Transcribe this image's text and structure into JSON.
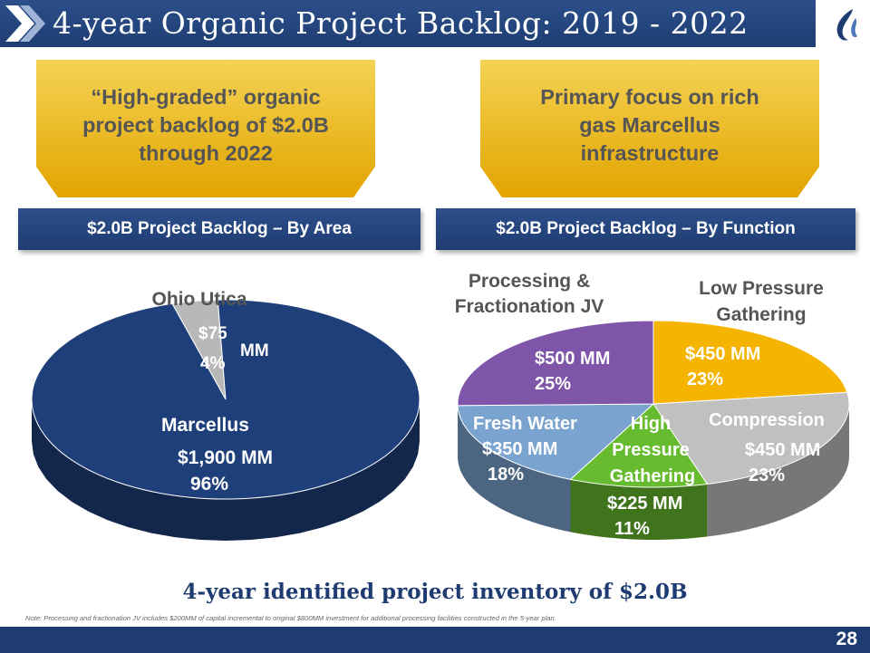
{
  "header": {
    "title": "4-year Organic Project Backlog: 2019 - 2022"
  },
  "callouts": [
    {
      "lines": [
        "“High-graded” organic",
        "project backlog of $2.0B",
        "through 2022"
      ]
    },
    {
      "lines": [
        "Primary focus on rich",
        "gas Marcellus",
        "infrastructure"
      ]
    }
  ],
  "bands": {
    "area": "$2.0B Project Backlog – By Area",
    "function": "$2.0B Project Backlog – By Function"
  },
  "chart_data": [
    {
      "type": "pie",
      "title": "$2.0B Project Backlog – By Area",
      "unit": "MM",
      "slices": [
        {
          "name": "Ohio Utica",
          "value": 75,
          "percent": 4,
          "value_label": "$75",
          "unit_label": "MM",
          "percent_label": "4%",
          "color": "#b8b8b8"
        },
        {
          "name": "Marcellus",
          "value": 1900,
          "percent": 96,
          "value_label": "$1,900  MM",
          "percent_label": "96%",
          "color": "#1f3f7a"
        }
      ]
    },
    {
      "type": "pie",
      "title": "$2.0B Project Backlog – By Function",
      "unit": "MM",
      "slices": [
        {
          "name": "Low Pressure Gathering",
          "name_lines": [
            "Low Pressure",
            "Gathering"
          ],
          "value": 450,
          "percent": 23,
          "value_label": "$450  MM",
          "percent_label": "23%",
          "color": "#f4b400"
        },
        {
          "name": "Compression",
          "name_lines": [
            "Compression"
          ],
          "value": 450,
          "percent": 23,
          "value_label": "$450 MM",
          "percent_label": "23%",
          "color": "#c0c0c0"
        },
        {
          "name": "High Pressure Gathering",
          "name_lines": [
            "High",
            "Pressure",
            "Gathering"
          ],
          "value": 225,
          "percent": 11,
          "value_label": "$225 MM",
          "percent_label": "11%",
          "color": "#66bb2e"
        },
        {
          "name": "Fresh Water",
          "name_lines": [
            "Fresh Water"
          ],
          "value": 350,
          "percent": 18,
          "value_label": "$350 MM",
          "percent_label": "18%",
          "color": "#7aa3cf"
        },
        {
          "name": "Processing & Fractionation JV",
          "name_lines": [
            "Processing &",
            "Fractionation JV"
          ],
          "value": 500,
          "percent": 25,
          "value_label": "$500 MM",
          "percent_label": "25%",
          "color": "#7e55a8"
        }
      ]
    }
  ],
  "summary": "4-year identified project inventory of $2.0B",
  "note": "Note: Processing and fractionation JV includes $200MM of capital incremental to original $800MM investment for additional processing facilities constructed in the 5-year plan.",
  "footer": {
    "page_number": "28"
  },
  "colors": {
    "navy": "#1f3c72",
    "gold": "#f4b400",
    "callout_gold_top": "#f2cd45",
    "callout_gold_bottom": "#e5a800"
  }
}
